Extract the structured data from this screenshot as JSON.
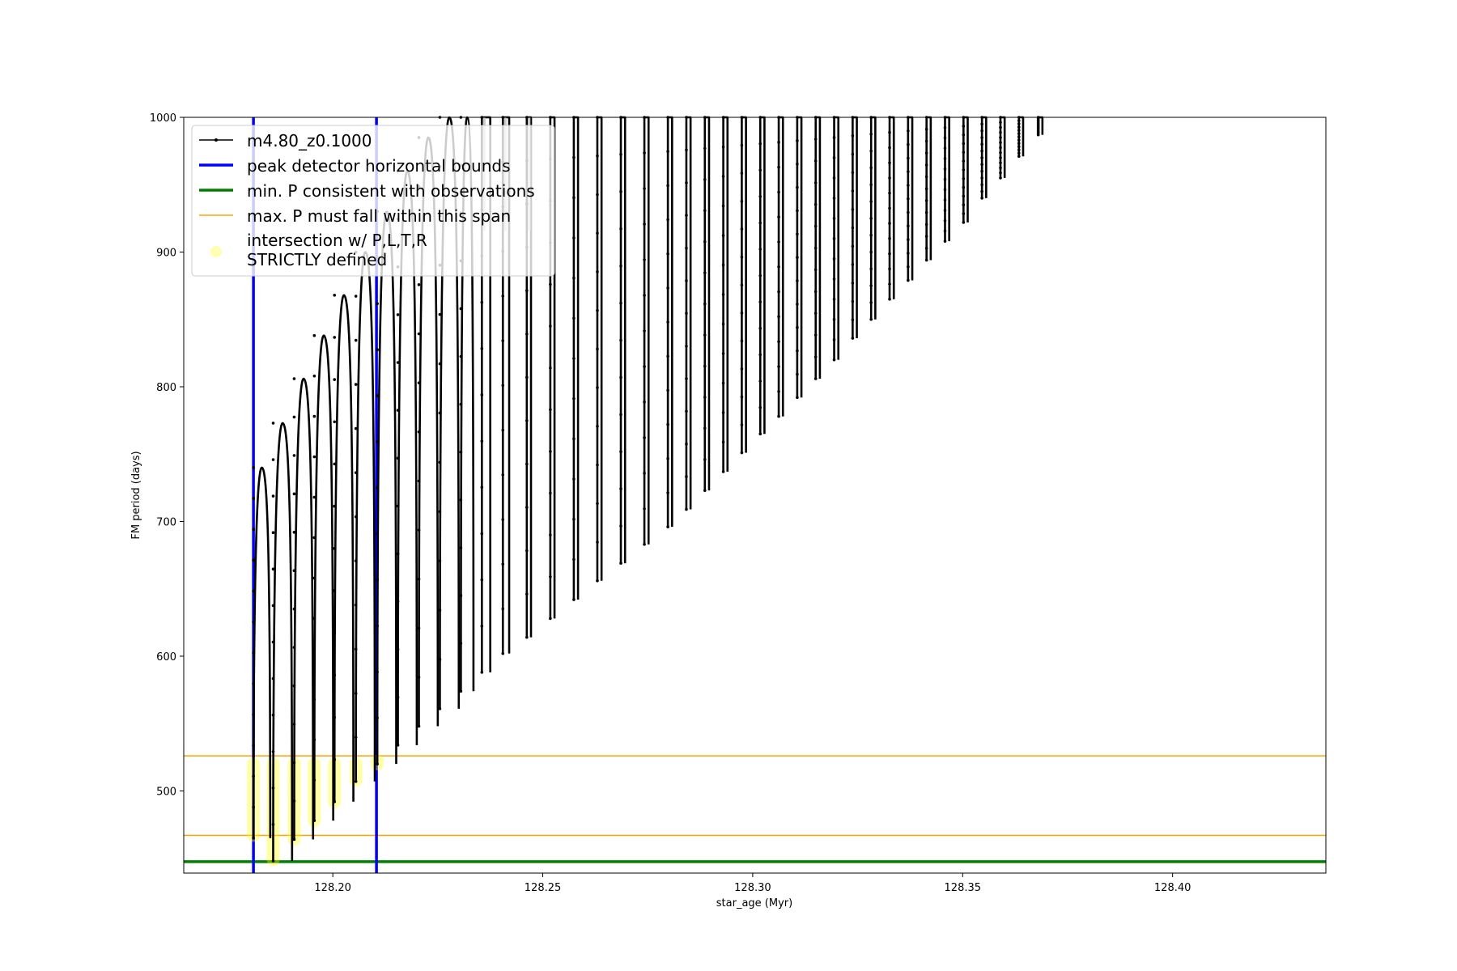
{
  "chart_data": {
    "type": "line",
    "xlabel": "star_age (Myr)",
    "ylabel": "FM period (days)",
    "xlim": [
      128.1645,
      128.4365
    ],
    "ylim": [
      439,
      1000
    ],
    "xticks": [
      128.2,
      128.25,
      128.3,
      128.35,
      128.4
    ],
    "xtick_labels": [
      "128.20",
      "128.25",
      "128.30",
      "128.35",
      "128.40"
    ],
    "yticks": [
      500,
      600,
      700,
      800,
      900,
      1000
    ],
    "ytick_labels": [
      "500",
      "600",
      "700",
      "800",
      "900",
      "1000"
    ],
    "grid": false,
    "legend_position": "upper-left",
    "series": [
      {
        "name": "m4.80_z0.1000",
        "kind": "line-with-markers",
        "color": "#000000",
        "pulses": [
          {
            "x": 128.1811,
            "min": 465,
            "max": 740,
            "width": 0.004
          },
          {
            "x": 128.1858,
            "min": 448,
            "max": 773,
            "width": 0.0045
          },
          {
            "x": 128.1908,
            "min": 464,
            "max": 806,
            "width": 0.0045
          },
          {
            "x": 128.1956,
            "min": 478,
            "max": 838,
            "width": 0.0045
          },
          {
            "x": 128.2004,
            "min": 492,
            "max": 868,
            "width": 0.0045
          },
          {
            "x": 128.2055,
            "min": 507,
            "max": 900,
            "width": 0.0045
          },
          {
            "x": 128.2106,
            "min": 520,
            "max": 930,
            "width": 0.0045
          },
          {
            "x": 128.2155,
            "min": 534,
            "max": 960,
            "width": 0.0045
          },
          {
            "x": 128.2205,
            "min": 548,
            "max": 985,
            "width": 0.0045
          },
          {
            "x": 128.2255,
            "min": 561,
            "max": 1000,
            "width": 0.0045
          },
          {
            "x": 128.2305,
            "min": 574,
            "max": 1000,
            "width": 0.003
          },
          {
            "x": 128.2355,
            "min": 588,
            "max": 1000,
            "width": 0.002
          },
          {
            "x": 128.2405,
            "min": 602,
            "max": 1000,
            "width": 0.0015
          },
          {
            "x": 128.2462,
            "min": 614,
            "max": 1000,
            "width": 0.001
          },
          {
            "x": 128.2518,
            "min": 628,
            "max": 1000,
            "width": 0.001
          },
          {
            "x": 128.2574,
            "min": 642,
            "max": 1000,
            "width": 0.001
          },
          {
            "x": 128.263,
            "min": 656,
            "max": 1000,
            "width": 0.001
          },
          {
            "x": 128.2686,
            "min": 669,
            "max": 1000,
            "width": 0.001
          },
          {
            "x": 128.2742,
            "min": 683,
            "max": 1000,
            "width": 0.001
          },
          {
            "x": 128.2798,
            "min": 696,
            "max": 1000,
            "width": 0.001
          },
          {
            "x": 128.2842,
            "min": 709,
            "max": 1000,
            "width": 0.001
          },
          {
            "x": 128.2886,
            "min": 723,
            "max": 1000,
            "width": 0.001
          },
          {
            "x": 128.293,
            "min": 737,
            "max": 1000,
            "width": 0.001
          },
          {
            "x": 128.2974,
            "min": 751,
            "max": 1000,
            "width": 0.001
          },
          {
            "x": 128.3018,
            "min": 765,
            "max": 1000,
            "width": 0.001
          },
          {
            "x": 128.3062,
            "min": 778,
            "max": 1000,
            "width": 0.001
          },
          {
            "x": 128.3106,
            "min": 792,
            "max": 1000,
            "width": 0.001
          },
          {
            "x": 128.315,
            "min": 806,
            "max": 1000,
            "width": 0.001
          },
          {
            "x": 128.3194,
            "min": 820,
            "max": 1000,
            "width": 0.001
          },
          {
            "x": 128.3238,
            "min": 836,
            "max": 1000,
            "width": 0.001
          },
          {
            "x": 128.3282,
            "min": 850,
            "max": 1000,
            "width": 0.001
          },
          {
            "x": 128.3326,
            "min": 865,
            "max": 1000,
            "width": 0.001
          },
          {
            "x": 128.337,
            "min": 879,
            "max": 1000,
            "width": 0.001
          },
          {
            "x": 128.3414,
            "min": 894,
            "max": 1000,
            "width": 0.001
          },
          {
            "x": 128.3458,
            "min": 908,
            "max": 1000,
            "width": 0.001
          },
          {
            "x": 128.3502,
            "min": 922,
            "max": 1000,
            "width": 0.001
          },
          {
            "x": 128.3546,
            "min": 940,
            "max": 1000,
            "width": 0.001
          },
          {
            "x": 128.359,
            "min": 955,
            "max": 1000,
            "width": 0.001
          },
          {
            "x": 128.3634,
            "min": 971,
            "max": 1000,
            "width": 0.001
          },
          {
            "x": 128.368,
            "min": 987,
            "max": 1000,
            "width": 0.001
          }
        ]
      },
      {
        "name": "peak detector horizontal bounds",
        "kind": "vline",
        "color": "#0000ff",
        "x": [
          128.1811,
          128.2104
        ]
      },
      {
        "name": "min. P consistent with observations",
        "kind": "hline",
        "color": "#008000",
        "y": [
          447.5
        ]
      },
      {
        "name": "max. P must fall within this span",
        "kind": "hline",
        "color": "#ffa500",
        "y": [
          467,
          526
        ]
      },
      {
        "name": "intersection w/ P,L,T,R\nSTRICTLY defined",
        "kind": "scatter",
        "color": "#ffff00",
        "segments": [
          {
            "x": 128.1811,
            "y": [
              467,
              520
            ]
          },
          {
            "x": 128.1858,
            "y": [
              449,
              520
            ]
          },
          {
            "x": 128.1908,
            "y": [
              464,
              520
            ]
          },
          {
            "x": 128.1956,
            "y": [
              478,
              520
            ]
          },
          {
            "x": 128.2004,
            "y": [
              492,
              520
            ]
          },
          {
            "x": 128.2055,
            "y": [
              508,
              520
            ]
          },
          {
            "x": 128.2106,
            "y": [
              520,
              522
            ]
          }
        ]
      }
    ]
  }
}
